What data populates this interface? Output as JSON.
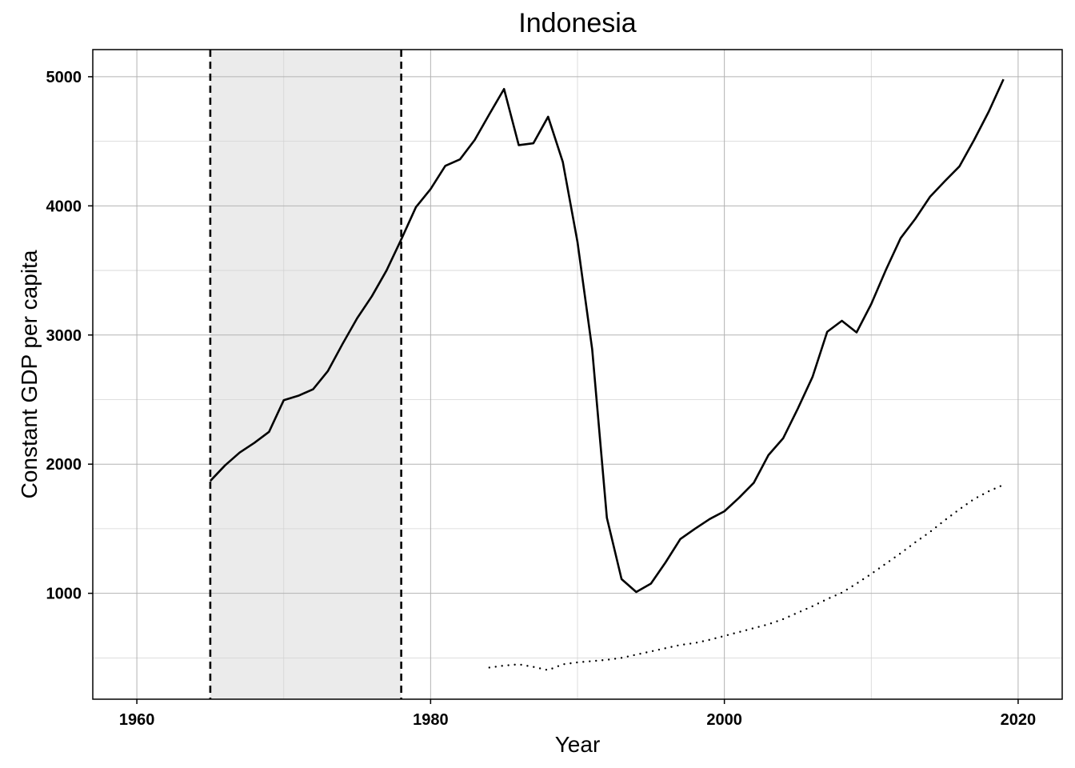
{
  "chart_data": {
    "type": "line",
    "title": "Indonesia",
    "xlabel": "Year",
    "ylabel": "Constant GDP per capita",
    "xlim": [
      1957,
      2023
    ],
    "ylim": [
      180,
      5210
    ],
    "x_ticks": [
      1960,
      1980,
      2000,
      2020
    ],
    "y_ticks": [
      1000,
      2000,
      3000,
      4000,
      5000
    ],
    "x_minor_grid": [
      1970,
      1990,
      2010
    ],
    "y_minor_grid": [
      500,
      1500,
      2500,
      3500,
      4500
    ],
    "grid": true,
    "shaded_period": {
      "start": 1965,
      "end": 1978
    },
    "series": [
      {
        "style": "solid",
        "x": [
          1965,
          1966,
          1967,
          1968,
          1969,
          1970,
          1971,
          1972,
          1973,
          1974,
          1975,
          1976,
          1977,
          1978,
          1979,
          1980,
          1981,
          1982,
          1983,
          1984,
          1985,
          1986,
          1987,
          1988,
          1989,
          1990,
          1991,
          1992,
          1993,
          1994,
          1995,
          1996,
          1997,
          1998,
          1999,
          2000,
          2001,
          2002,
          2003,
          2004,
          2005,
          2006,
          2007,
          2008,
          2009,
          2010,
          2011,
          2012,
          2013,
          2014,
          2015,
          2016,
          2017,
          2018,
          2019
        ],
        "values": [
          1870,
          1990,
          2090,
          2165,
          2250,
          2495,
          2530,
          2580,
          2720,
          2930,
          3130,
          3300,
          3500,
          3740,
          3990,
          4130,
          4310,
          4360,
          4510,
          4710,
          4905,
          4470,
          4485,
          4690,
          4340,
          3720,
          2890,
          1585,
          1110,
          1010,
          1075,
          1240,
          1420,
          1500,
          1575,
          1635,
          1740,
          1855,
          2070,
          2200,
          2430,
          2675,
          3025,
          3110,
          3020,
          3240,
          3505,
          3750,
          3900,
          4070,
          4190,
          4305,
          4510,
          4730,
          4980
        ]
      },
      {
        "style": "dotted",
        "x": [
          1984,
          1985,
          1986,
          1987,
          1988,
          1989,
          1990,
          1991,
          1992,
          1993,
          1994,
          1995,
          1996,
          1997,
          1998,
          1999,
          2000,
          2001,
          2002,
          2003,
          2004,
          2005,
          2006,
          2007,
          2008,
          2009,
          2010,
          2011,
          2012,
          2013,
          2014,
          2015,
          2016,
          2017,
          2018,
          2019
        ],
        "values": [
          425,
          440,
          450,
          430,
          405,
          450,
          465,
          475,
          485,
          500,
          525,
          550,
          575,
          600,
          615,
          640,
          670,
          700,
          730,
          760,
          800,
          850,
          900,
          955,
          1005,
          1075,
          1150,
          1230,
          1310,
          1395,
          1475,
          1565,
          1650,
          1730,
          1790,
          1840
        ]
      }
    ]
  }
}
